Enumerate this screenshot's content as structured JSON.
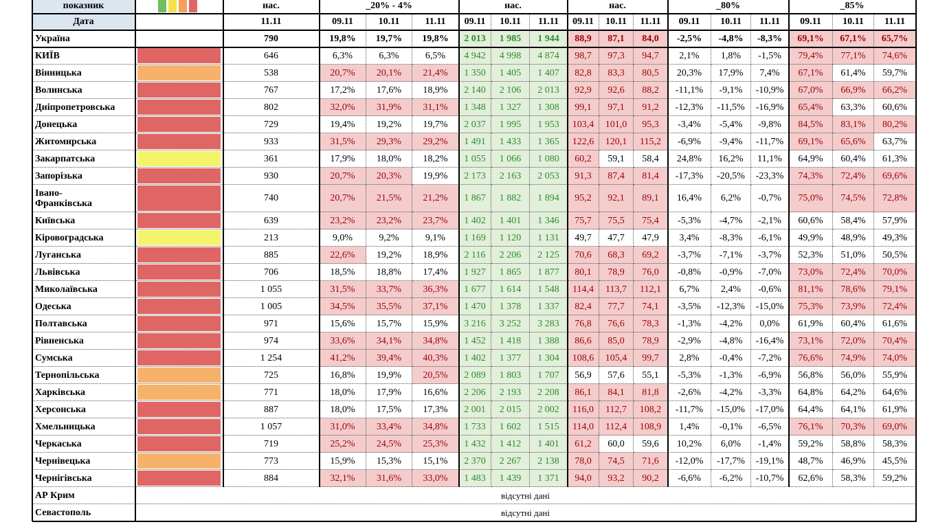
{
  "header": {
    "top": [
      "показник",
      "нас.",
      "_20% - 4%",
      "нас.",
      "нас.",
      "_80%",
      "_85%"
    ],
    "date_label": "Дата",
    "pop_date": "11.11",
    "dates": [
      "09.11",
      "10.11",
      "11.11",
      "09.11",
      "10.11",
      "11.11",
      "09.11",
      "10.11",
      "11.11",
      "09.11",
      "10.11",
      "11.11",
      "09.11",
      "10.11",
      "11.11"
    ]
  },
  "total": {
    "name": "Україна",
    "cells": [
      "790",
      "19,8%",
      "19,7%",
      "19,8%",
      "2 013",
      "1 985",
      "1 944",
      "88,9",
      "87,1",
      "84,0",
      "-2,5%",
      "-4,8%",
      "-8,3%",
      "69,1%",
      "67,1%",
      "65,7%"
    ],
    "highlight": [
      false,
      false,
      false,
      false,
      false,
      false,
      true,
      true,
      true,
      false,
      false,
      false,
      true,
      true,
      true
    ]
  },
  "regions": [
    {
      "name": "КИЇВ",
      "status": "#e06666",
      "cells": [
        "646",
        "6,3%",
        "6,3%",
        "6,5%",
        "4 942",
        "4 998",
        "4 874",
        "98,7",
        "97,3",
        "94,7",
        "2,1%",
        "1,8%",
        "-1,5%",
        "79,4%",
        "77,1%",
        "74,6%"
      ],
      "highlight": [
        false,
        false,
        false,
        false,
        false,
        false,
        true,
        true,
        true,
        false,
        false,
        false,
        true,
        true,
        true
      ]
    },
    {
      "name": "Вінницька",
      "status": "#f6b26b",
      "cells": [
        "538",
        "20,7%",
        "20,1%",
        "21,4%",
        "1 350",
        "1 405",
        "1 407",
        "82,8",
        "83,3",
        "80,5",
        "20,3%",
        "17,9%",
        "7,4%",
        "67,1%",
        "61,4%",
        "59,7%"
      ],
      "highlight": [
        true,
        true,
        true,
        false,
        false,
        false,
        true,
        true,
        true,
        false,
        false,
        false,
        true,
        false,
        false
      ]
    },
    {
      "name": "Волинська",
      "status": "#e06666",
      "cells": [
        "767",
        "17,2%",
        "17,6%",
        "18,9%",
        "2 140",
        "2 106",
        "2 013",
        "92,9",
        "92,6",
        "88,2",
        "-11,1%",
        "-9,1%",
        "-10,9%",
        "67,0%",
        "66,9%",
        "66,2%"
      ],
      "highlight": [
        false,
        false,
        false,
        false,
        false,
        false,
        true,
        true,
        true,
        false,
        false,
        false,
        true,
        true,
        true
      ]
    },
    {
      "name": "Дніпропетровська",
      "status": "#e06666",
      "cells": [
        "802",
        "32,0%",
        "31,9%",
        "31,1%",
        "1 348",
        "1 327",
        "1 308",
        "99,1",
        "97,1",
        "91,2",
        "-12,3%",
        "-11,5%",
        "-16,9%",
        "65,4%",
        "63,3%",
        "60,6%"
      ],
      "highlight": [
        true,
        true,
        true,
        false,
        false,
        false,
        true,
        true,
        true,
        false,
        false,
        false,
        true,
        false,
        false
      ]
    },
    {
      "name": "Донецька",
      "status": "#e06666",
      "cells": [
        "729",
        "19,4%",
        "19,2%",
        "19,7%",
        "2 037",
        "1 995",
        "1 953",
        "103,4",
        "101,0",
        "95,3",
        "-3,4%",
        "-5,4%",
        "-9,8%",
        "84,5%",
        "83,1%",
        "80,2%"
      ],
      "highlight": [
        false,
        false,
        false,
        false,
        false,
        false,
        true,
        true,
        true,
        false,
        false,
        false,
        true,
        true,
        true
      ]
    },
    {
      "name": "Житомирська",
      "status": "#e06666",
      "cells": [
        "933",
        "31,5%",
        "29,3%",
        "29,2%",
        "1 491",
        "1 433",
        "1 365",
        "122,6",
        "120,1",
        "115,2",
        "-6,9%",
        "-9,4%",
        "-11,7%",
        "69,1%",
        "65,6%",
        "63,7%"
      ],
      "highlight": [
        true,
        true,
        true,
        false,
        false,
        false,
        true,
        true,
        true,
        false,
        false,
        false,
        true,
        true,
        false
      ]
    },
    {
      "name": "Закарпатська",
      "status": "#f4f46c",
      "cells": [
        "361",
        "17,9%",
        "18,0%",
        "18,2%",
        "1 055",
        "1 066",
        "1 080",
        "60,2",
        "59,1",
        "58,4",
        "24,8%",
        "16,2%",
        "11,1%",
        "64,9%",
        "60,4%",
        "61,3%"
      ],
      "highlight": [
        false,
        false,
        false,
        false,
        false,
        false,
        true,
        false,
        false,
        false,
        false,
        false,
        false,
        false,
        false
      ]
    },
    {
      "name": "Запорізька",
      "status": "#e06666",
      "cells": [
        "930",
        "20,7%",
        "20,3%",
        "19,9%",
        "2 173",
        "2 163",
        "2 053",
        "91,3",
        "87,4",
        "81,4",
        "-17,3%",
        "-20,5%",
        "-23,3%",
        "74,3%",
        "72,4%",
        "69,6%"
      ],
      "highlight": [
        true,
        true,
        false,
        false,
        false,
        false,
        true,
        true,
        true,
        false,
        false,
        false,
        true,
        true,
        true
      ]
    },
    {
      "name": "Івано-\nФранківська",
      "status": "#e06666",
      "cells": [
        "740",
        "20,7%",
        "21,5%",
        "21,2%",
        "1 867",
        "1 882",
        "1 894",
        "95,2",
        "92,1",
        "89,1",
        "16,4%",
        "6,2%",
        "-0,7%",
        "75,0%",
        "74,5%",
        "72,8%"
      ],
      "highlight": [
        true,
        true,
        true,
        false,
        false,
        false,
        true,
        true,
        true,
        false,
        false,
        false,
        true,
        true,
        true
      ]
    },
    {
      "name": "Київська",
      "status": "#e06666",
      "cells": [
        "639",
        "23,2%",
        "23,2%",
        "23,7%",
        "1 402",
        "1 401",
        "1 346",
        "75,7",
        "75,5",
        "75,4",
        "-5,3%",
        "-4,7%",
        "-2,1%",
        "60,6%",
        "58,4%",
        "57,9%"
      ],
      "highlight": [
        true,
        true,
        true,
        false,
        false,
        false,
        true,
        true,
        true,
        false,
        false,
        false,
        false,
        false,
        false
      ]
    },
    {
      "name": "Кіровоградська",
      "status": "#f4f46c",
      "cells": [
        "213",
        "9,0%",
        "9,2%",
        "9,1%",
        "1 169",
        "1 120",
        "1 131",
        "49,7",
        "47,7",
        "47,9",
        "3,4%",
        "-8,3%",
        "-6,1%",
        "49,9%",
        "48,9%",
        "49,3%"
      ],
      "highlight": [
        false,
        false,
        false,
        false,
        false,
        false,
        false,
        false,
        false,
        false,
        false,
        false,
        false,
        false,
        false
      ]
    },
    {
      "name": "Луганська",
      "status": "#e06666",
      "cells": [
        "885",
        "22,6%",
        "19,2%",
        "18,9%",
        "2 116",
        "2 206",
        "2 125",
        "70,6",
        "68,3",
        "69,2",
        "-3,7%",
        "-7,1%",
        "-3,7%",
        "52,3%",
        "51,0%",
        "50,5%"
      ],
      "highlight": [
        true,
        false,
        false,
        false,
        false,
        false,
        true,
        true,
        true,
        false,
        false,
        false,
        false,
        false,
        false
      ]
    },
    {
      "name": "Львівська",
      "status": "#e06666",
      "cells": [
        "706",
        "18,5%",
        "18,8%",
        "17,4%",
        "1 927",
        "1 865",
        "1 877",
        "80,1",
        "78,9",
        "76,0",
        "-0,8%",
        "-0,9%",
        "-7,0%",
        "73,0%",
        "72,4%",
        "70,0%"
      ],
      "highlight": [
        false,
        false,
        false,
        false,
        false,
        false,
        true,
        true,
        true,
        false,
        false,
        false,
        true,
        true,
        true
      ]
    },
    {
      "name": "Миколаївська",
      "status": "#e06666",
      "cells": [
        "1 055",
        "31,5%",
        "33,7%",
        "36,3%",
        "1 677",
        "1 614",
        "1 548",
        "114,4",
        "113,7",
        "112,1",
        "6,7%",
        "2,4%",
        "-0,6%",
        "81,1%",
        "78,6%",
        "79,1%"
      ],
      "highlight": [
        true,
        true,
        true,
        false,
        false,
        false,
        true,
        true,
        true,
        false,
        false,
        false,
        true,
        true,
        true
      ]
    },
    {
      "name": "Одеська",
      "status": "#e06666",
      "cells": [
        "1 005",
        "34,5%",
        "35,5%",
        "37,1%",
        "1 470",
        "1 378",
        "1 337",
        "82,4",
        "77,7",
        "74,1",
        "-3,5%",
        "-12,3%",
        "-15,0%",
        "75,3%",
        "73,9%",
        "72,4%"
      ],
      "highlight": [
        true,
        true,
        true,
        false,
        false,
        false,
        true,
        true,
        true,
        false,
        false,
        false,
        true,
        true,
        true
      ]
    },
    {
      "name": "Полтавська",
      "status": "#e06666",
      "cells": [
        "971",
        "15,6%",
        "15,7%",
        "15,9%",
        "3 216",
        "3 252",
        "3 283",
        "76,8",
        "76,6",
        "78,3",
        "-1,3%",
        "-4,2%",
        "0,0%",
        "61,9%",
        "60,4%",
        "61,6%"
      ],
      "highlight": [
        false,
        false,
        false,
        false,
        false,
        false,
        true,
        true,
        true,
        false,
        false,
        false,
        false,
        false,
        false
      ]
    },
    {
      "name": "Рівненська",
      "status": "#e06666",
      "cells": [
        "974",
        "33,6%",
        "34,1%",
        "34,8%",
        "1 452",
        "1 418",
        "1 388",
        "86,6",
        "85,0",
        "78,9",
        "-2,9%",
        "-4,8%",
        "-16,4%",
        "73,1%",
        "72,0%",
        "70,4%"
      ],
      "highlight": [
        true,
        true,
        true,
        false,
        false,
        false,
        true,
        true,
        true,
        false,
        false,
        false,
        true,
        true,
        true
      ]
    },
    {
      "name": "Сумська",
      "status": "#e06666",
      "cells": [
        "1 254",
        "41,2%",
        "39,4%",
        "40,3%",
        "1 402",
        "1 377",
        "1 304",
        "108,6",
        "105,4",
        "99,7",
        "2,8%",
        "-0,4%",
        "-7,2%",
        "76,6%",
        "74,9%",
        "74,0%"
      ],
      "highlight": [
        true,
        true,
        true,
        false,
        false,
        false,
        true,
        true,
        true,
        false,
        false,
        false,
        true,
        true,
        true
      ]
    },
    {
      "name": "Тернопільська",
      "status": "#f6b26b",
      "cells": [
        "725",
        "16,8%",
        "19,9%",
        "20,5%",
        "2 089",
        "1 803",
        "1 707",
        "56,9",
        "57,6",
        "55,1",
        "-5,3%",
        "-1,3%",
        "-6,9%",
        "56,8%",
        "56,0%",
        "55,9%"
      ],
      "highlight": [
        false,
        false,
        true,
        false,
        false,
        false,
        false,
        false,
        false,
        false,
        false,
        false,
        false,
        false,
        false
      ]
    },
    {
      "name": "Харківська",
      "status": "#f6b26b",
      "cells": [
        "771",
        "18,0%",
        "17,9%",
        "16,6%",
        "2 206",
        "2 193",
        "2 208",
        "86,1",
        "84,1",
        "81,8",
        "-2,6%",
        "-4,2%",
        "-3,3%",
        "64,8%",
        "64,2%",
        "64,6%"
      ],
      "highlight": [
        false,
        false,
        false,
        false,
        false,
        false,
        true,
        true,
        true,
        false,
        false,
        false,
        false,
        false,
        false
      ]
    },
    {
      "name": "Херсонська",
      "status": "#e06666",
      "cells": [
        "887",
        "18,0%",
        "17,5%",
        "17,3%",
        "2 001",
        "2 015",
        "2 002",
        "116,0",
        "112,7",
        "108,2",
        "-11,7%",
        "-15,0%",
        "-17,0%",
        "64,4%",
        "64,1%",
        "61,9%"
      ],
      "highlight": [
        false,
        false,
        false,
        false,
        false,
        false,
        true,
        true,
        true,
        false,
        false,
        false,
        false,
        false,
        false
      ]
    },
    {
      "name": "Хмельницька",
      "status": "#e06666",
      "cells": [
        "1 057",
        "31,0%",
        "33,4%",
        "34,8%",
        "1 733",
        "1 602",
        "1 515",
        "114,0",
        "112,4",
        "108,9",
        "1,4%",
        "-0,1%",
        "-6,5%",
        "76,1%",
        "70,3%",
        "69,0%"
      ],
      "highlight": [
        true,
        true,
        true,
        false,
        false,
        false,
        true,
        true,
        true,
        false,
        false,
        false,
        true,
        true,
        true
      ]
    },
    {
      "name": "Черкаська",
      "status": "#e06666",
      "cells": [
        "719",
        "25,2%",
        "24,5%",
        "25,3%",
        "1 432",
        "1 412",
        "1 401",
        "61,2",
        "60,0",
        "59,6",
        "10,2%",
        "6,0%",
        "-1,4%",
        "59,2%",
        "58,8%",
        "58,3%"
      ],
      "highlight": [
        true,
        true,
        true,
        false,
        false,
        false,
        true,
        false,
        false,
        false,
        false,
        false,
        false,
        false,
        false
      ]
    },
    {
      "name": "Чернівецька",
      "status": "#f6b26b",
      "cells": [
        "773",
        "15,9%",
        "15,3%",
        "15,1%",
        "2 370",
        "2 267",
        "2 138",
        "78,0",
        "74,5",
        "71,6",
        "-12,0%",
        "-17,7%",
        "-19,1%",
        "48,7%",
        "46,9%",
        "45,5%"
      ],
      "highlight": [
        false,
        false,
        false,
        false,
        false,
        false,
        true,
        true,
        true,
        false,
        false,
        false,
        false,
        false,
        false
      ]
    },
    {
      "name": "Чернігівська",
      "status": "#e06666",
      "cells": [
        "884",
        "32,1%",
        "31,6%",
        "33,0%",
        "1 483",
        "1 439",
        "1 371",
        "94,0",
        "93,2",
        "90,2",
        "-6,6%",
        "-6,2%",
        "-10,7%",
        "62,6%",
        "58,3%",
        "59,2%"
      ],
      "highlight": [
        true,
        true,
        true,
        false,
        false,
        false,
        true,
        true,
        true,
        false,
        false,
        false,
        false,
        false,
        false
      ]
    }
  ],
  "missing": [
    {
      "name": "АР Крим",
      "note": "відсутні дані"
    },
    {
      "name": "Севастополь",
      "note": "відсутні дані"
    }
  ]
}
